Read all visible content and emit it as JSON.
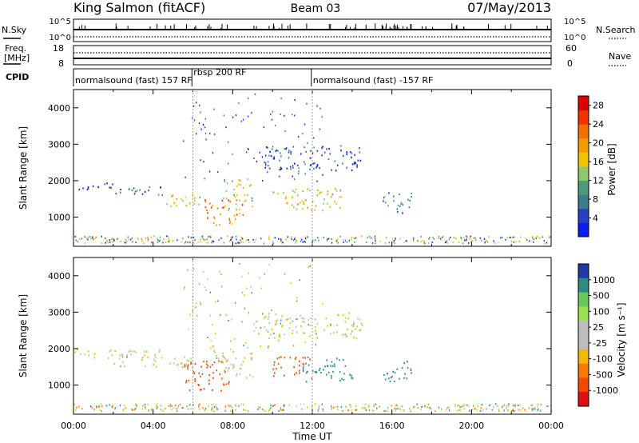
{
  "header": {
    "station": "King Salmon (fitACF)",
    "beam": "Beam 03",
    "date": "07/May/2013"
  },
  "left_labels": {
    "nsky": "N.Sky",
    "freq_line1": "Freq.",
    "freq_line2": "[MHz]",
    "cpid": "CPID"
  },
  "right_labels": {
    "nsearch": "N.Search",
    "nave": "Nave"
  },
  "noise_axis": {
    "left_top": "10^5",
    "left_bottom": "10^0",
    "right_top": "10^5",
    "right_bottom": "10^0"
  },
  "freq_axis": {
    "left_top": "18",
    "left_bottom": "8",
    "right_top": "60",
    "right_bottom": "0"
  },
  "cpid_segments": [
    {
      "label": "normalsound (fast) 157 RF",
      "start_h": 0,
      "end_h": 5.95
    },
    {
      "label": "rbsp 200 RF",
      "start_h": 5.95,
      "end_h": 11.95
    },
    {
      "label": "normalsound (fast) -157 RF",
      "start_h": 11.95,
      "end_h": 24
    }
  ],
  "x_axis": {
    "label": "Time UT",
    "ticks": [
      "00:00",
      "04:00",
      "08:00",
      "12:00",
      "16:00",
      "20:00",
      "00:00"
    ]
  },
  "colors": {
    "power": [
      "#0b1cf0",
      "#2840c0",
      "#3b7d8a",
      "#4f9a7a",
      "#8fc76a",
      "#f2c400",
      "#f49a00",
      "#f27000",
      "#ee3300",
      "#dd0000"
    ],
    "velocity_pos": [
      "#1f3aa6",
      "#2e8a84",
      "#6ac75a",
      "#9be04e"
    ],
    "velocity_zero": "#bdbdbd",
    "velocity_neg": [
      "#f2b800",
      "#f47a00",
      "#ef4a00",
      "#e01010"
    ]
  },
  "chart_data": [
    {
      "type": "heatmap",
      "name": "power",
      "ylabel": "Slant Range [km]",
      "ylim": [
        200,
        4500
      ],
      "xlim": [
        0,
        24
      ],
      "yticks": [
        "1000",
        "2000",
        "3000",
        "4000"
      ],
      "colorbar": {
        "label": "Power [dB]",
        "ticks": [
          "4",
          "8",
          "12",
          "16",
          "20",
          "24",
          "28"
        ],
        "range": [
          0,
          30
        ]
      },
      "features": [
        {
          "t0": 0.0,
          "t1": 2.0,
          "r0": 1750,
          "r1": 2000,
          "level": 4
        },
        {
          "t0": 2.0,
          "t1": 4.5,
          "r0": 1550,
          "r1": 1850,
          "level": 6
        },
        {
          "t0": 4.5,
          "t1": 6.5,
          "r0": 1300,
          "r1": 1650,
          "level": 16
        },
        {
          "t0": 6.5,
          "t1": 8.5,
          "r0": 800,
          "r1": 1500,
          "level": 22
        },
        {
          "t0": 7.5,
          "t1": 9.0,
          "r0": 1200,
          "r1": 2100,
          "level": 14
        },
        {
          "t0": 10.0,
          "t1": 13.5,
          "r0": 1200,
          "r1": 1800,
          "level": 16
        },
        {
          "t0": 9.5,
          "t1": 14.5,
          "r0": 2300,
          "r1": 3000,
          "level": 4
        },
        {
          "t0": 15.5,
          "t1": 17.0,
          "r0": 1100,
          "r1": 1700,
          "level": 8
        }
      ]
    },
    {
      "type": "heatmap",
      "name": "velocity",
      "ylabel": "Slant Range [km]",
      "ylim": [
        200,
        4500
      ],
      "xlim": [
        0,
        24
      ],
      "yticks": [
        "1000",
        "2000",
        "3000",
        "4000"
      ],
      "colorbar": {
        "label": "Velocity [m s⁻¹]",
        "ticks": [
          "1000",
          "500",
          "100",
          "25",
          "-25",
          "-100",
          "-500",
          "-1000"
        ]
      },
      "features": [
        {
          "t0": 0.0,
          "t1": 4.5,
          "r0": 1750,
          "r1": 2000,
          "vel": 0
        },
        {
          "t0": 2.0,
          "t1": 6.0,
          "r0": 1500,
          "r1": 1850,
          "vel": 0
        },
        {
          "t0": 5.5,
          "t1": 7.8,
          "r0": 800,
          "r1": 1700,
          "vel": -300
        },
        {
          "t0": 7.0,
          "t1": 9.0,
          "r0": 1200,
          "r1": 2000,
          "vel": 0
        },
        {
          "t0": 10.0,
          "t1": 12.0,
          "r0": 1200,
          "r1": 1800,
          "vel": -300
        },
        {
          "t0": 11.5,
          "t1": 14.0,
          "r0": 1100,
          "r1": 1800,
          "vel": 200
        },
        {
          "t0": 9.5,
          "t1": 14.5,
          "r0": 2300,
          "r1": 3000,
          "vel": 0
        },
        {
          "t0": 15.5,
          "t1": 17.0,
          "r0": 1100,
          "r1": 1700,
          "vel": 150
        }
      ]
    }
  ]
}
